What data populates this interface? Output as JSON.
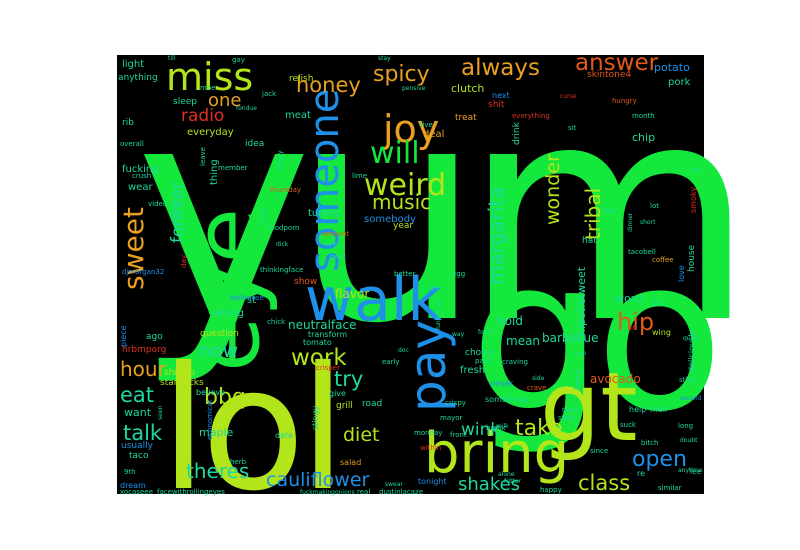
{
  "canvas_color": "#000000",
  "words": [
    {
      "text": "yum",
      "color": "#14e83c"
    },
    {
      "text": "go",
      "color": "#14e83c"
    },
    {
      "text": "lol",
      "color": "#b3e61a"
    },
    {
      "text": "gt",
      "color": "#b3e61a"
    },
    {
      "text": "eye",
      "color": "#14e83c"
    },
    {
      "text": "walk",
      "color": "#1e90e8"
    },
    {
      "text": "bring",
      "color": "#b3e61a"
    },
    {
      "text": "pay",
      "color": "#1e90e8"
    },
    {
      "text": "someone",
      "color": "#1e90e8"
    },
    {
      "text": "miss",
      "color": "#b3e61a"
    },
    {
      "text": "joy",
      "color": "#e8a020"
    },
    {
      "text": "will",
      "color": "#14e83c"
    },
    {
      "text": "weird",
      "color": "#b3e61a"
    },
    {
      "text": "honey",
      "color": "#e8a020"
    },
    {
      "text": "spicy",
      "color": "#e8a020"
    },
    {
      "text": "always",
      "color": "#e8a020"
    },
    {
      "text": "answer",
      "color": "#e05a1a"
    },
    {
      "text": "one",
      "color": "#e8a020"
    },
    {
      "text": "radio",
      "color": "#e03020"
    },
    {
      "text": "music",
      "color": "#b3e61a"
    },
    {
      "text": "sweet",
      "color": "#e8a020"
    },
    {
      "text": "margarita",
      "color": "#1ed8a0"
    },
    {
      "text": "wonder",
      "color": "#b3e61a"
    },
    {
      "text": "tribal",
      "color": "#b3e61a"
    },
    {
      "text": "forever",
      "color": "#1ed8a0"
    },
    {
      "text": "hip",
      "color": "#e05a1a"
    },
    {
      "text": "now",
      "color": "#1ed8a0"
    },
    {
      "text": "work",
      "color": "#b3e61a"
    },
    {
      "text": "try",
      "color": "#1ed8a0"
    },
    {
      "text": "hour",
      "color": "#e8a020"
    },
    {
      "text": "eat",
      "color": "#1ed8a0"
    },
    {
      "text": "bbq",
      "color": "#b3e61a"
    },
    {
      "text": "talk",
      "color": "#1ed8a0"
    },
    {
      "text": "diet",
      "color": "#b3e61a"
    },
    {
      "text": "wink",
      "color": "#1ed8a0"
    },
    {
      "text": "take",
      "color": "#b3e61a"
    },
    {
      "text": "open",
      "color": "#1e90e8"
    },
    {
      "text": "class",
      "color": "#b3e61a"
    },
    {
      "text": "theres",
      "color": "#1ed8a0"
    },
    {
      "text": "cauliflower",
      "color": "#1e90e8"
    },
    {
      "text": "shakes",
      "color": "#1ed8a0"
    },
    {
      "text": "flavor",
      "color": "#b3e61a"
    },
    {
      "text": "neutralface",
      "color": "#1ed8a0"
    },
    {
      "text": "barbecue",
      "color": "#1ed8a0"
    },
    {
      "text": "chipotletweet",
      "color": "#1ed8a0"
    },
    {
      "text": "avocado",
      "color": "#e05a1a"
    },
    {
      "text": "hold",
      "color": "#1ed8a0"
    },
    {
      "text": "mean",
      "color": "#1ed8a0"
    },
    {
      "text": "word",
      "color": "#1ed8a0"
    },
    {
      "text": "want",
      "color": "#1ed8a0"
    },
    {
      "text": "maple",
      "color": "#1ed8a0"
    },
    {
      "text": "potato",
      "color": "#1e90e8"
    },
    {
      "text": "pork",
      "color": "#1ed8a0"
    },
    {
      "text": "skintone4",
      "color": "#e05a1a"
    },
    {
      "text": "light",
      "color": "#1ed8a0"
    },
    {
      "text": "anything",
      "color": "#1ed8a0"
    },
    {
      "text": "relish",
      "color": "#b3e61a"
    },
    {
      "text": "clutch",
      "color": "#b3e61a"
    },
    {
      "text": "meat",
      "color": "#1ed8a0"
    },
    {
      "text": "treat",
      "color": "#e8a020"
    },
    {
      "text": "shit",
      "color": "#e03020"
    },
    {
      "text": "next",
      "color": "#1e90e8"
    },
    {
      "text": "drink",
      "color": "#1ed8a0"
    },
    {
      "text": "chip",
      "color": "#1ed8a0"
    },
    {
      "text": "deal",
      "color": "#e8a020"
    },
    {
      "text": "sleep",
      "color": "#1ed8a0"
    },
    {
      "text": "everyday",
      "color": "#b3e61a"
    },
    {
      "text": "idea",
      "color": "#1ed8a0"
    },
    {
      "text": "rib",
      "color": "#1ed8a0"
    },
    {
      "text": "fucking",
      "color": "#1ed8a0"
    },
    {
      "text": "thing",
      "color": "#1ed8a0"
    },
    {
      "text": "wear",
      "color": "#1ed8a0"
    },
    {
      "text": "turkey",
      "color": "#1ed8a0"
    },
    {
      "text": "somebody",
      "color": "#1e90e8"
    },
    {
      "text": "year",
      "color": "#b3e61a"
    },
    {
      "text": "hat",
      "color": "#1ed8a0"
    },
    {
      "text": "house",
      "color": "#1ed8a0"
    },
    {
      "text": "love",
      "color": "#1e90e8"
    },
    {
      "text": "smoky",
      "color": "#e03020"
    },
    {
      "text": "show",
      "color": "#e05a1a"
    },
    {
      "text": "st",
      "color": "#1ed8a0"
    },
    {
      "text": "wrong",
      "color": "#1ed8a0"
    },
    {
      "text": "question",
      "color": "#b3e61a"
    },
    {
      "text": "ago",
      "color": "#1ed8a0"
    },
    {
      "text": "hrbmporg",
      "color": "#e03020"
    },
    {
      "text": "shrimp",
      "color": "#b3e61a"
    },
    {
      "text": "starbucks",
      "color": "#b3e61a"
    },
    {
      "text": "tomato",
      "color": "#1ed8a0"
    },
    {
      "text": "transform",
      "color": "#1ed8a0"
    },
    {
      "text": "choice",
      "color": "#1ed8a0"
    },
    {
      "text": "fresh",
      "color": "#1ed8a0"
    },
    {
      "text": "grill",
      "color": "#b3e61a"
    },
    {
      "text": "road",
      "color": "#1ed8a0"
    },
    {
      "text": "give",
      "color": "#1ed8a0"
    },
    {
      "text": "stingy",
      "color": "#1ed8a0"
    },
    {
      "text": "date",
      "color": "#1ed8a0"
    },
    {
      "text": "salad",
      "color": "#e8a020"
    },
    {
      "text": "usually",
      "color": "#1e90e8"
    },
    {
      "text": "taco",
      "color": "#1ed8a0"
    },
    {
      "text": "dream",
      "color": "#1e90e8"
    },
    {
      "text": "believe",
      "color": "#1ed8a0"
    },
    {
      "text": "never",
      "color": "#1e90e8"
    },
    {
      "text": "something",
      "color": "#1ed8a0"
    },
    {
      "text": "help",
      "color": "#1ed8a0"
    },
    {
      "text": "mall",
      "color": "#1ed8a0"
    },
    {
      "text": "wing",
      "color": "#b3e61a"
    },
    {
      "text": "deliciously",
      "color": "#1ed8a0"
    },
    {
      "text": "head",
      "color": "#1ed8a0"
    },
    {
      "text": "re",
      "color": "#1ed8a0"
    },
    {
      "text": "piece",
      "color": "#1e90e8"
    },
    {
      "text": "tonight",
      "color": "#1e90e8"
    },
    {
      "text": "stick",
      "color": "#1ed8a0"
    },
    {
      "text": "suck",
      "color": "#1ed8a0"
    },
    {
      "text": "long",
      "color": "#1ed8a0"
    },
    {
      "text": "fee",
      "color": "#1ed8a0"
    },
    {
      "text": "similar",
      "color": "#1ed8a0"
    },
    {
      "text": "bitch",
      "color": "#1ed8a0"
    },
    {
      "text": "crave",
      "color": "#e05a1a"
    },
    {
      "text": "mayor",
      "color": "#1ed8a0"
    },
    {
      "text": "crispy",
      "color": "#1ed8a0"
    },
    {
      "text": "front",
      "color": "#1ed8a0"
    },
    {
      "text": "break",
      "color": "#1ed8a0"
    },
    {
      "text": "state",
      "color": "#1ed8a0"
    },
    {
      "text": "since",
      "color": "#1ed8a0"
    },
    {
      "text": "herb",
      "color": "#1ed8a0"
    },
    {
      "text": "within",
      "color": "#e03020"
    },
    {
      "text": "monday",
      "color": "#1ed8a0"
    },
    {
      "text": "economical",
      "color": "#1e90e8"
    },
    {
      "text": "xocaseee",
      "color": "#1ed8a0"
    },
    {
      "text": "facewithrollingeyes",
      "color": "#1ed8a0"
    },
    {
      "text": "real",
      "color": "#1ed8a0"
    },
    {
      "text": "dustinlacaze",
      "color": "#1ed8a0"
    },
    {
      "text": "happy",
      "color": "#1ed8a0"
    },
    {
      "text": "9th",
      "color": "#1ed8a0"
    },
    {
      "text": "crisper",
      "color": "#e03020"
    },
    {
      "text": "pack",
      "color": "#1ed8a0"
    },
    {
      "text": "craving",
      "color": "#1ed8a0"
    },
    {
      "text": "early",
      "color": "#1ed8a0"
    },
    {
      "text": "chick",
      "color": "#1ed8a0"
    },
    {
      "text": "lot",
      "color": "#1ed8a0"
    },
    {
      "text": "full",
      "color": "#1ed8a0"
    },
    {
      "text": "sit",
      "color": "#1ed8a0"
    },
    {
      "text": "hungry",
      "color": "#e05a1a"
    },
    {
      "text": "month",
      "color": "#1ed8a0"
    },
    {
      "text": "everything",
      "color": "#e03020"
    },
    {
      "text": "five",
      "color": "#1ed8a0"
    },
    {
      "text": "even",
      "color": "#1ed8a0"
    },
    {
      "text": "amount",
      "color": "#e05a1a"
    },
    {
      "text": "beat",
      "color": "#1ed8a0"
    },
    {
      "text": "better",
      "color": "#1ed8a0"
    },
    {
      "text": "egg",
      "color": "#1ed8a0"
    },
    {
      "text": "see",
      "color": "#1ed8a0"
    },
    {
      "text": "put",
      "color": "#1ed8a0"
    },
    {
      "text": "tacobell",
      "color": "#1ed8a0"
    },
    {
      "text": "coffee",
      "color": "#e8a020"
    },
    {
      "text": "video",
      "color": "#1ed8a0"
    },
    {
      "text": "crush",
      "color": "#1ed8a0"
    },
    {
      "text": "member",
      "color": "#1ed8a0"
    },
    {
      "text": "thursday",
      "color": "#e05a1a"
    },
    {
      "text": "every",
      "color": "#1ed8a0"
    },
    {
      "text": "cava",
      "color": "#1ed8a0"
    },
    {
      "text": "foodporn",
      "color": "#1ed8a0"
    },
    {
      "text": "lime",
      "color": "#1ed8a0"
    },
    {
      "text": "moe",
      "color": "#1ed8a0"
    },
    {
      "text": "jack",
      "color": "#1ed8a0"
    },
    {
      "text": "overall",
      "color": "#1ed8a0"
    },
    {
      "text": "leave",
      "color": "#1ed8a0"
    },
    {
      "text": "norfolk",
      "color": "#1ed8a0"
    },
    {
      "text": "day",
      "color": "#e03020"
    },
    {
      "text": "bellhouse",
      "color": "#1e90e8"
    },
    {
      "text": "thinkingface",
      "color": "#1ed8a0"
    },
    {
      "text": "djmorgan32",
      "color": "#1e90e8"
    },
    {
      "text": "gay",
      "color": "#1ed8a0"
    },
    {
      "text": "till",
      "color": "#1ed8a0"
    },
    {
      "text": "pensive",
      "color": "#1ed8a0"
    },
    {
      "text": "curse",
      "color": "#e03020"
    },
    {
      "text": "stay",
      "color": "#1ed8a0"
    },
    {
      "text": "side",
      "color": "#1ed8a0"
    },
    {
      "text": "food",
      "color": "#1ed8a0"
    },
    {
      "text": "fritter",
      "color": "#1ed8a0"
    },
    {
      "text": "alone",
      "color": "#1ed8a0"
    },
    {
      "text": "anytime",
      "color": "#1ed8a0"
    },
    {
      "text": "second",
      "color": "#1e90e8"
    },
    {
      "text": "seen",
      "color": "#1ed8a0"
    },
    {
      "text": "today",
      "color": "#1ed8a0"
    },
    {
      "text": "ooo",
      "color": "#1ed8a0"
    },
    {
      "text": "doubt",
      "color": "#1ed8a0"
    },
    {
      "text": "th",
      "color": "#e03020"
    },
    {
      "text": "ahh",
      "color": "#1ed8a0"
    },
    {
      "text": "quick",
      "color": "#1ed8a0"
    },
    {
      "text": "short",
      "color": "#1ed8a0"
    },
    {
      "text": "dinner",
      "color": "#1ed8a0"
    },
    {
      "text": "fondue",
      "color": "#1ed8a0"
    },
    {
      "text": "dick",
      "color": "#1ed8a0"
    },
    {
      "text": "fundraiser",
      "color": "#1ed8a0"
    },
    {
      "text": "fuckmakingonions",
      "color": "#1ed8a0"
    },
    {
      "text": "swear",
      "color": "#1ed8a0"
    },
    {
      "text": "milk",
      "color": "#1ed8a0"
    },
    {
      "text": "doc",
      "color": "#1ed8a0"
    },
    {
      "text": "way",
      "color": "#1ed8a0"
    }
  ]
}
